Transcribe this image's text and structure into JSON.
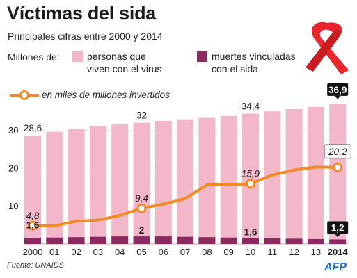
{
  "header": {
    "title": "Víctimas del sida",
    "subtitle": "Principales cifras entre 2000 y 2014"
  },
  "legend": {
    "prefix": "Millones de:",
    "pink_line1": "personas que",
    "pink_line2": "viven con el virus",
    "dark_line1": "muertes vinculadas",
    "dark_line2": "con el sida",
    "line_label": "en miles de millones invertidos"
  },
  "footer": {
    "source": "Fuente: UNAIDS",
    "brand": "AFP"
  },
  "colors": {
    "living": "#f2b8c9",
    "deaths": "#8b2a5e",
    "investment": "#f08a24",
    "label_box": "#111111",
    "ribbon": "#e8262b"
  },
  "chart_data": {
    "type": "bar",
    "categories": [
      "2000",
      "01",
      "02",
      "03",
      "04",
      "05",
      "06",
      "07",
      "08",
      "09",
      "10",
      "11",
      "12",
      "13",
      "2014"
    ],
    "ylim": [
      0,
      40
    ],
    "yticks": [
      "10",
      "20",
      "30"
    ],
    "series": [
      {
        "name": "personas que viven con el virus",
        "kind": "bar",
        "values": [
          28.6,
          29.6,
          30.4,
          31.1,
          31.6,
          32.0,
          32.5,
          32.9,
          33.3,
          33.8,
          34.4,
          35.0,
          35.6,
          36.2,
          36.9
        ]
      },
      {
        "name": "muertes vinculadas con el sida",
        "kind": "bar",
        "values": [
          1.6,
          1.7,
          1.8,
          1.9,
          2.0,
          2.0,
          2.0,
          1.9,
          1.8,
          1.7,
          1.6,
          1.5,
          1.4,
          1.3,
          1.2
        ]
      },
      {
        "name": "en miles de millones invertidos",
        "kind": "line",
        "values": [
          4.8,
          4.8,
          6.0,
          6.3,
          7.5,
          9.4,
          10.5,
          12.0,
          15.6,
          15.6,
          15.9,
          18.2,
          19.5,
          20.3,
          20.2
        ]
      }
    ],
    "annotations": [
      {
        "series": 0,
        "index": 0,
        "text": "28,6",
        "style": "plain"
      },
      {
        "series": 0,
        "index": 5,
        "text": "32",
        "style": "plain"
      },
      {
        "series": 0,
        "index": 10,
        "text": "34,4",
        "style": "plain"
      },
      {
        "series": 0,
        "index": 14,
        "text": "36,9",
        "style": "box"
      },
      {
        "series": 1,
        "index": 0,
        "text": "1,6",
        "style": "plain"
      },
      {
        "series": 1,
        "index": 5,
        "text": "2",
        "style": "plain"
      },
      {
        "series": 1,
        "index": 10,
        "text": "1,6",
        "style": "plain"
      },
      {
        "series": 1,
        "index": 14,
        "text": "1,2",
        "style": "box"
      },
      {
        "series": 2,
        "index": 0,
        "text": "4,8",
        "style": "italic"
      },
      {
        "series": 2,
        "index": 5,
        "text": "9,4",
        "style": "italic"
      },
      {
        "series": 2,
        "index": 10,
        "text": "15,9",
        "style": "italic"
      },
      {
        "series": 2,
        "index": 14,
        "text": "20,2",
        "style": "italic-box"
      }
    ],
    "markers_at": [
      0,
      5,
      10,
      14
    ]
  }
}
